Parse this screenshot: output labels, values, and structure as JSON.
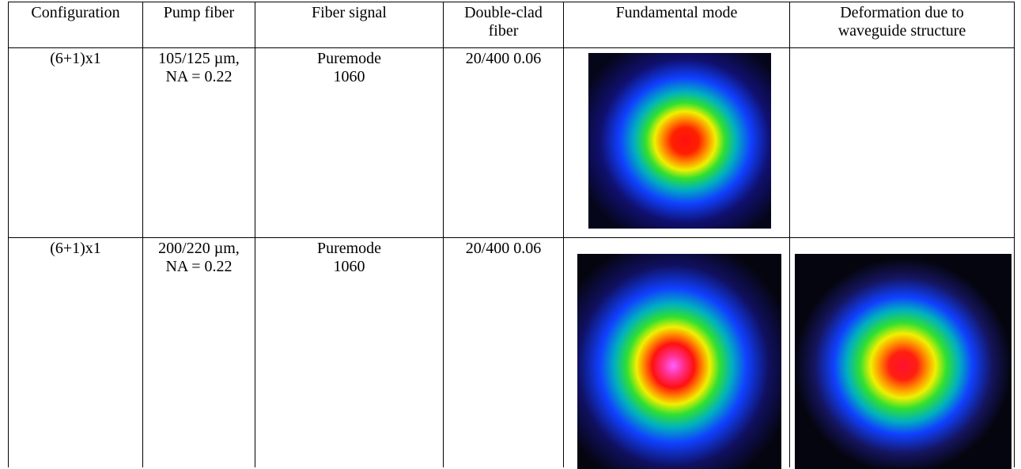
{
  "table": {
    "headers": [
      [
        "Configuration"
      ],
      [
        "Pump fiber"
      ],
      [
        "Fiber signal"
      ],
      [
        "Double-clad",
        "fiber"
      ],
      [
        "Fundamental mode"
      ],
      [
        "Deformation due to",
        "waveguide structure"
      ]
    ],
    "rows": [
      [
        [
          "(6+1)x1"
        ],
        [
          "105/125 µm,",
          "NA =  0.22"
        ],
        [
          "Puremode",
          "1060"
        ],
        [
          "20/400 0.06"
        ]
      ],
      [
        [
          "(6+1)x1"
        ],
        [
          "200/220 µm,",
          "NA =  0.22"
        ],
        [
          "Puremode",
          "1060"
        ],
        [
          "20/400 0.06"
        ]
      ]
    ]
  }
}
